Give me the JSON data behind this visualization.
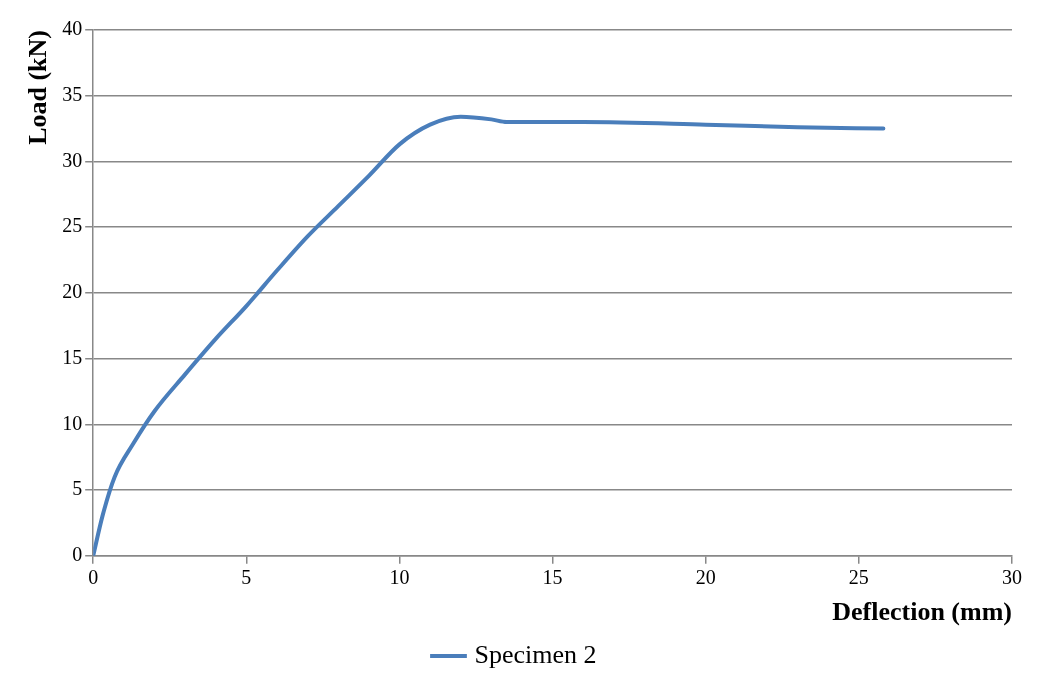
{
  "chart_data": {
    "type": "line",
    "xlabel": "Deflection (mm)",
    "ylabel": "Load (kN)",
    "xlim": [
      0,
      30
    ],
    "xticks": [
      0,
      5,
      10,
      15,
      20,
      25,
      30
    ],
    "ylim": [
      0,
      40
    ],
    "yticks": [
      0,
      5,
      10,
      15,
      20,
      25,
      30,
      35,
      40
    ],
    "grid": "y",
    "legend": "bottom",
    "marker": "none",
    "line_style": "solid",
    "series": [
      {
        "name": "Specimen 2",
        "color": "#4a7ebb",
        "x": [
          0,
          0.3,
          0.7,
          1.3,
          2,
          3,
          4,
          5,
          6,
          7,
          8,
          9,
          10,
          11,
          12,
          13,
          13.5,
          16,
          20,
          23,
          25.8
        ],
        "values": [
          0,
          3,
          6,
          8.5,
          11,
          13.8,
          16.5,
          19,
          21.7,
          24.3,
          26.6,
          28.9,
          31.3,
          32.8,
          33.4,
          33.2,
          33,
          33,
          32.8,
          32.6,
          32.5
        ]
      }
    ]
  }
}
